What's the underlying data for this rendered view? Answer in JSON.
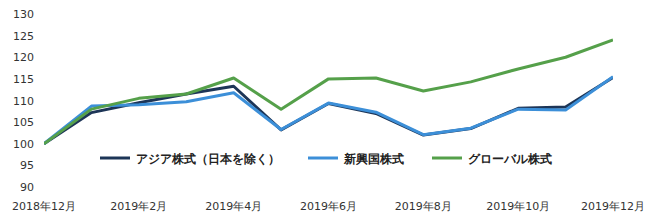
{
  "chart_data": {
    "type": "line",
    "categories": [
      "2018年12月",
      null,
      "2019年2月",
      null,
      "2019年4月",
      null,
      "2019年6月",
      null,
      "2019年8月",
      null,
      "2019年10月",
      null,
      "2019年12月"
    ],
    "series": [
      {
        "name": "アジア株式（日本を除く）",
        "color": "#1d3557",
        "values": [
          100,
          107.2,
          109.5,
          111.5,
          113.3,
          103.2,
          109.3,
          107,
          102,
          103.5,
          108.2,
          108.5,
          115.3
        ]
      },
      {
        "name": "新興国株式",
        "color": "#3c8fd8",
        "values": [
          100,
          108.7,
          109,
          109.7,
          111.8,
          103.3,
          109.4,
          107.3,
          102.1,
          103.6,
          108,
          107.8,
          115.5
        ]
      },
      {
        "name": "グローバル株式",
        "color": "#55a04a",
        "values": [
          100,
          108,
          110.5,
          111.5,
          115.2,
          108,
          115,
          115.2,
          112.2,
          114.3,
          117.3,
          120,
          124
        ]
      }
    ],
    "ylim": [
      90,
      130
    ],
    "yticks": [
      90,
      95,
      100,
      105,
      110,
      115,
      120,
      125,
      130
    ],
    "grid": false,
    "legend": "bottom"
  }
}
